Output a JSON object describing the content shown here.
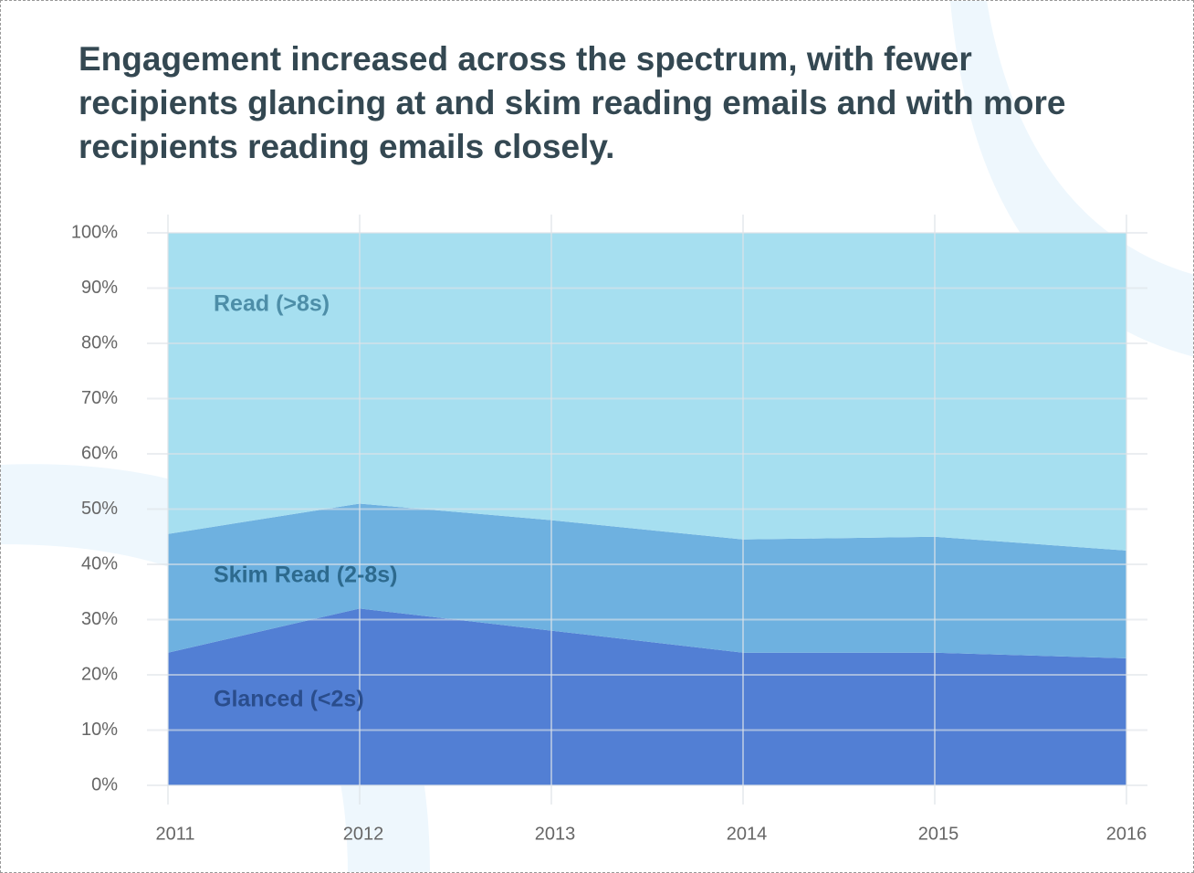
{
  "chart_data": {
    "type": "stacked-area",
    "title": "Engagement increased across the spectrum, with fewer recipients glancing at and skim reading emails and with more recipients reading emails closely.",
    "categories": [
      "2011",
      "2012",
      "2013",
      "2014",
      "2015",
      "2016"
    ],
    "series": [
      {
        "name": "Glanced (<2s)",
        "color": "#527fd4",
        "label_color": "#2a4d8c",
        "values": [
          24,
          32,
          28,
          24,
          24,
          23
        ]
      },
      {
        "name": "Skim Read (2-8s)",
        "color": "#6eb1e0",
        "label_color": "#2d6a8e",
        "values": [
          21.5,
          19,
          20,
          20.5,
          21,
          19.5
        ]
      },
      {
        "name": "Read (>8s)",
        "color": "#a6dff0",
        "label_color": "#4d8ea8",
        "values": [
          54.5,
          49,
          52,
          55.5,
          55,
          57.5
        ]
      }
    ],
    "ylim": [
      0,
      100
    ],
    "yticks": [
      {
        "value": 0,
        "label": "0%"
      },
      {
        "value": 10,
        "label": "10%"
      },
      {
        "value": 20,
        "label": "20%"
      },
      {
        "value": 30,
        "label": "30%"
      },
      {
        "value": 40,
        "label": "40%"
      },
      {
        "value": 50,
        "label": "50%"
      },
      {
        "value": 60,
        "label": "60%"
      },
      {
        "value": 70,
        "label": "70%"
      },
      {
        "value": 80,
        "label": "80%"
      },
      {
        "value": 90,
        "label": "90%"
      },
      {
        "value": 100,
        "label": "100%"
      }
    ],
    "grid": true
  }
}
